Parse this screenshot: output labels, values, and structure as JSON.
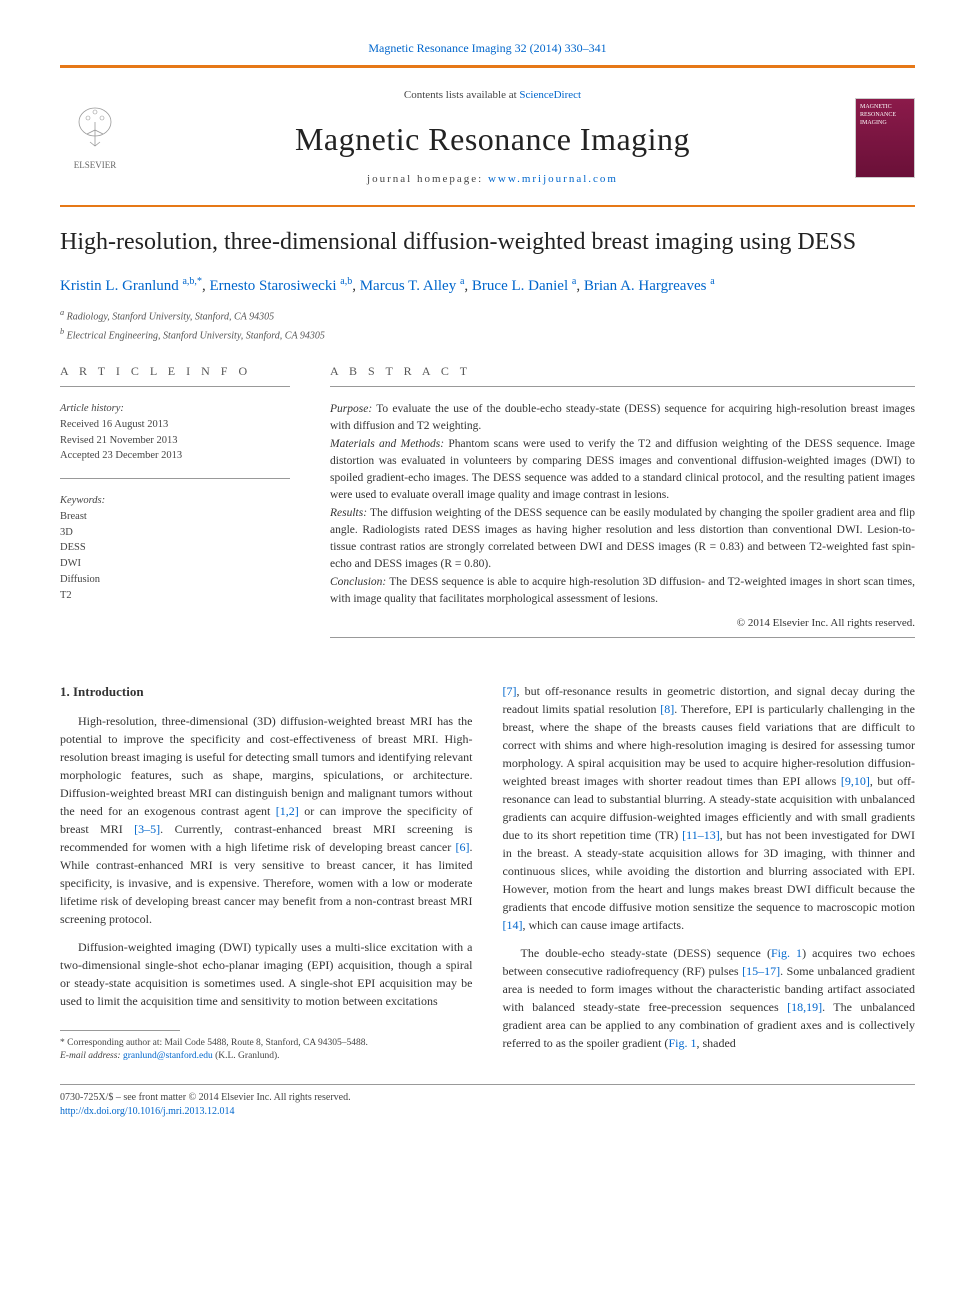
{
  "header": {
    "citation_link_text": "Magnetic Resonance Imaging 32 (2014) 330–341",
    "contents_prefix": "Contents lists available at ",
    "contents_link": "ScienceDirect",
    "journal_name": "Magnetic Resonance Imaging",
    "homepage_prefix": "journal homepage: ",
    "homepage_link": "www.mrijournal.com",
    "publisher": "ELSEVIER",
    "cover_text": "MAGNETIC RESONANCE IMAGING"
  },
  "article": {
    "title": "High-resolution, three-dimensional diffusion-weighted breast imaging using DESS",
    "authors": [
      {
        "name": "Kristin L. Granlund",
        "aff": "a,b,",
        "star": "*"
      },
      {
        "name": "Ernesto Starosiwecki",
        "aff": "a,b",
        "star": ""
      },
      {
        "name": "Marcus T. Alley",
        "aff": "a",
        "star": ""
      },
      {
        "name": "Bruce L. Daniel",
        "aff": "a",
        "star": ""
      },
      {
        "name": "Brian A. Hargreaves",
        "aff": "a",
        "star": ""
      }
    ],
    "affiliations": [
      {
        "sup": "a",
        "text": "Radiology, Stanford University, Stanford, CA 94305"
      },
      {
        "sup": "b",
        "text": "Electrical Engineering, Stanford University, Stanford, CA 94305"
      }
    ]
  },
  "info": {
    "heading": "A R T I C L E   I N F O",
    "history_label": "Article history:",
    "received": "Received 16 August 2013",
    "revised": "Revised 21 November 2013",
    "accepted": "Accepted 23 December 2013",
    "keywords_label": "Keywords:",
    "keywords": [
      "Breast",
      "3D",
      "DESS",
      "DWI",
      "Diffusion",
      "T2"
    ]
  },
  "abstract": {
    "heading": "A B S T R A C T",
    "purpose_label": "Purpose:",
    "purpose": "To evaluate the use of the double-echo steady-state (DESS) sequence for acquiring high-resolution breast images with diffusion and T2 weighting.",
    "methods_label": "Materials and Methods:",
    "methods": "Phantom scans were used to verify the T2 and diffusion weighting of the DESS sequence. Image distortion was evaluated in volunteers by comparing DESS images and conventional diffusion-weighted images (DWI) to spoiled gradient-echo images. The DESS sequence was added to a standard clinical protocol, and the resulting patient images were used to evaluate overall image quality and image contrast in lesions.",
    "results_label": "Results:",
    "results": "The diffusion weighting of the DESS sequence can be easily modulated by changing the spoiler gradient area and flip angle. Radiologists rated DESS images as having higher resolution and less distortion than conventional DWI. Lesion-to-tissue contrast ratios are strongly correlated between DWI and DESS images (R = 0.83) and between T2-weighted fast spin-echo and DESS images (R = 0.80).",
    "conclusion_label": "Conclusion:",
    "conclusion": "The DESS sequence is able to acquire high-resolution 3D diffusion- and T2-weighted images in short scan times, with image quality that facilitates morphological assessment of lesions.",
    "copyright": "© 2014 Elsevier Inc. All rights reserved."
  },
  "body": {
    "section_heading": "1. Introduction",
    "col1_p1": "High-resolution, three-dimensional (3D) diffusion-weighted breast MRI has the potential to improve the specificity and cost-effectiveness of breast MRI. High-resolution breast imaging is useful for detecting small tumors and identifying relevant morphologic features, such as shape, margins, spiculations, or architecture. Diffusion-weighted breast MRI can distinguish benign and malignant tumors without the need for an exogenous contrast agent [1,2] or can improve the specificity of breast MRI [3–5]. Currently, contrast-enhanced breast MRI screening is recommended for women with a high lifetime risk of developing breast cancer [6]. While contrast-enhanced MRI is very sensitive to breast cancer, it has limited specificity, is invasive, and is expensive. Therefore, women with a low or moderate lifetime risk of developing breast cancer may benefit from a non-contrast breast MRI screening protocol.",
    "col1_p2": "Diffusion-weighted imaging (DWI) typically uses a multi-slice excitation with a two-dimensional single-shot echo-planar imaging (EPI) acquisition, though a spiral or steady-state acquisition is sometimes used. A single-shot EPI acquisition may be used to limit the acquisition time and sensitivity to motion between excitations",
    "col2_p1": "[7], but off-resonance results in geometric distortion, and signal decay during the readout limits spatial resolution [8]. Therefore, EPI is particularly challenging in the breast, where the shape of the breasts causes field variations that are difficult to correct with shims and where high-resolution imaging is desired for assessing tumor morphology. A spiral acquisition may be used to acquire higher-resolution diffusion-weighted breast images with shorter readout times than EPI allows [9,10], but off-resonance can lead to substantial blurring. A steady-state acquisition with unbalanced gradients can acquire diffusion-weighted images efficiently and with small gradients due to its short repetition time (TR) [11–13], but has not been investigated for DWI in the breast. A steady-state acquisition allows for 3D imaging, with thinner and continuous slices, while avoiding the distortion and blurring associated with EPI. However, motion from the heart and lungs makes breast DWI difficult because the gradients that encode diffusive motion sensitize the sequence to macroscopic motion [14], which can cause image artifacts.",
    "col2_p2": "The double-echo steady-state (DESS) sequence (Fig. 1) acquires two echoes between consecutive radiofrequency (RF) pulses [15–17]. Some unbalanced gradient area is needed to form images without the characteristic banding artifact associated with balanced steady-state free-precession sequences [18,19]. The unbalanced gradient area can be applied to any combination of gradient axes and is collectively referred to as the spoiler gradient (Fig. 1, shaded"
  },
  "footnotes": {
    "corr_star": "*",
    "corr_text": "Corresponding author at: Mail Code 5488, Route 8, Stanford, CA 94305–5488.",
    "email_label": "E-mail address:",
    "email": "granlund@stanford.edu",
    "email_suffix": "(K.L. Granlund)."
  },
  "bottom": {
    "issn": "0730-725X/$ – see front matter © 2014 Elsevier Inc. All rights reserved.",
    "doi": "http://dx.doi.org/10.1016/j.mri.2013.12.014"
  },
  "style": {
    "link_color": "#0066cc",
    "accent_color": "#e67817",
    "text_color": "#333333",
    "muted_color": "#555555",
    "background": "#ffffff",
    "body_fontsize": 13,
    "title_fontsize": 24,
    "journal_fontsize": 32
  }
}
